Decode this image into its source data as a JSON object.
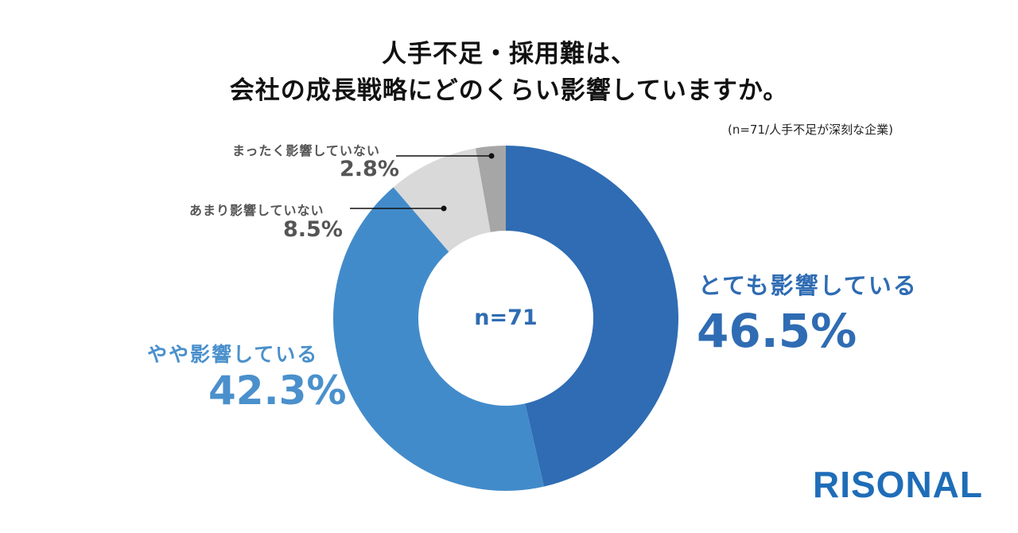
{
  "chart_data": {
    "type": "pie",
    "title_line1": "人手不足・採用難は、",
    "title_line2": "会社の成長戦略にどのくらい影響していますか。",
    "note": "(n=71/人手不足が深刻な企業)",
    "center_label": "n=71",
    "slices": [
      {
        "label": "とても影響している",
        "value": 46.5,
        "display": "46.5%",
        "color": "#2f6cb3"
      },
      {
        "label": "やや影響している",
        "value": 42.3,
        "display": "42.3%",
        "color": "#428bca"
      },
      {
        "label": "あまり影響していない",
        "value": 8.5,
        "display": "8.5%",
        "color": "#d9d9d9"
      },
      {
        "label": "まったく影響していない",
        "value": 2.8,
        "display": "2.8%",
        "color": "#a6a6a6"
      }
    ]
  },
  "brand": {
    "logo": "RISONAL"
  }
}
